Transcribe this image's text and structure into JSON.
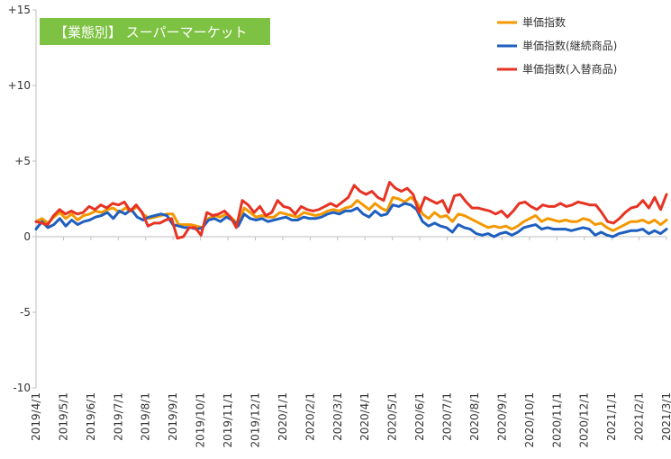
{
  "chart_data": {
    "type": "line",
    "title": "【業態別】 スーパーマーケット",
    "title_bg": "#7DC242",
    "xlabel": "",
    "ylabel": "",
    "ylim": [
      -10,
      15
    ],
    "y_ticks": [
      {
        "value": 15,
        "label": "+15"
      },
      {
        "value": 10,
        "label": "+10"
      },
      {
        "value": 5,
        "label": "+5"
      },
      {
        "value": 0,
        "label": "0"
      },
      {
        "value": -5,
        "label": "-5"
      },
      {
        "value": -10,
        "label": "-10"
      }
    ],
    "x_ticks": [
      "2019/4/1",
      "2019/5/1",
      "2019/6/1",
      "2019/7/1",
      "2019/8/1",
      "2019/9/1",
      "2019/10/1",
      "2019/11/1",
      "2019/12/1",
      "2020/1/1",
      "2020/2/1",
      "2020/3/1",
      "2020/4/1",
      "2020/5/1",
      "2020/6/1",
      "2020/7/1",
      "2020/8/1",
      "2020/9/1",
      "2020/10/1",
      "2020/11/1",
      "2020/12/1",
      "2021/1/1",
      "2021/2/1",
      "2021/3/1"
    ],
    "grid": "horizontal-at-zero-only",
    "legend_position": "top-right",
    "series": [
      {
        "name": "単価指数",
        "color": "#F39800",
        "values": [
          1.0,
          1.2,
          0.9,
          1.3,
          1.6,
          1.2,
          1.5,
          1.1,
          1.4,
          1.5,
          1.7,
          1.6,
          1.8,
          1.9,
          1.6,
          1.9,
          1.7,
          2.0,
          1.5,
          1.2,
          1.3,
          1.4,
          1.5,
          1.5,
          0.8,
          0.8,
          0.8,
          0.7,
          0.6,
          1.2,
          1.4,
          1.3,
          1.5,
          1.2,
          0.8,
          1.9,
          1.6,
          1.3,
          1.4,
          1.3,
          1.3,
          1.6,
          1.5,
          1.4,
          1.3,
          1.6,
          1.5,
          1.4,
          1.5,
          1.7,
          1.8,
          1.7,
          1.9,
          2.0,
          2.4,
          2.1,
          1.8,
          2.2,
          1.9,
          1.7,
          2.6,
          2.5,
          2.3,
          2.6,
          2.3,
          1.5,
          1.2,
          1.6,
          1.3,
          1.4,
          1.0,
          1.5,
          1.4,
          1.2,
          1.0,
          0.8,
          0.6,
          0.7,
          0.6,
          0.7,
          0.5,
          0.7,
          1.0,
          1.2,
          1.4,
          1.0,
          1.2,
          1.1,
          1.0,
          1.1,
          1.0,
          1.0,
          1.2,
          1.1,
          0.8,
          0.9,
          0.6,
          0.4,
          0.6,
          0.8,
          1.0,
          1.0,
          1.1,
          0.9,
          1.1,
          0.8,
          1.1
        ]
      },
      {
        "name": "単価指数(継続商品)",
        "color": "#1F5FBF",
        "values": [
          0.5,
          1.0,
          0.6,
          0.8,
          1.2,
          0.7,
          1.1,
          0.8,
          1.0,
          1.1,
          1.3,
          1.4,
          1.6,
          1.2,
          1.7,
          1.5,
          1.8,
          1.3,
          1.1,
          1.3,
          1.4,
          1.5,
          1.4,
          0.8,
          0.7,
          0.6,
          0.6,
          0.5,
          0.6,
          1.1,
          1.2,
          1.0,
          1.3,
          1.1,
          0.7,
          1.5,
          1.2,
          1.1,
          1.2,
          1.0,
          1.1,
          1.2,
          1.3,
          1.1,
          1.1,
          1.3,
          1.2,
          1.2,
          1.3,
          1.5,
          1.6,
          1.5,
          1.7,
          1.7,
          1.9,
          1.5,
          1.3,
          1.7,
          1.4,
          1.5,
          2.1,
          2.0,
          2.2,
          2.1,
          1.8,
          1.0,
          0.7,
          0.9,
          0.7,
          0.6,
          0.3,
          0.8,
          0.6,
          0.5,
          0.2,
          0.1,
          0.2,
          0.0,
          0.2,
          0.3,
          0.1,
          0.3,
          0.6,
          0.7,
          0.8,
          0.5,
          0.6,
          0.5,
          0.5,
          0.5,
          0.4,
          0.5,
          0.6,
          0.5,
          0.1,
          0.3,
          0.1,
          0.0,
          0.2,
          0.3,
          0.4,
          0.4,
          0.5,
          0.2,
          0.4,
          0.2,
          0.5
        ]
      },
      {
        "name": "単価指数(入替商品)",
        "color": "#E63323",
        "values": [
          1.0,
          0.9,
          0.8,
          1.4,
          1.8,
          1.5,
          1.7,
          1.5,
          1.6,
          2.0,
          1.8,
          2.1,
          1.9,
          2.2,
          2.1,
          2.3,
          1.7,
          2.1,
          1.6,
          0.7,
          0.9,
          0.9,
          1.1,
          1.2,
          -0.1,
          0.0,
          0.6,
          0.6,
          0.1,
          1.6,
          1.4,
          1.5,
          1.7,
          1.3,
          0.6,
          2.4,
          2.1,
          1.6,
          2.0,
          1.4,
          1.6,
          2.4,
          2.0,
          1.9,
          1.5,
          2.0,
          1.8,
          1.7,
          1.8,
          2.0,
          2.2,
          2.0,
          2.3,
          2.6,
          3.4,
          3.0,
          2.8,
          3.0,
          2.6,
          2.4,
          3.6,
          3.2,
          3.0,
          3.2,
          2.8,
          1.6,
          2.6,
          2.4,
          2.2,
          2.4,
          1.6,
          2.7,
          2.8,
          2.3,
          1.9,
          1.9,
          1.8,
          1.7,
          1.5,
          1.7,
          1.3,
          1.7,
          2.2,
          2.3,
          2.0,
          1.8,
          2.1,
          2.0,
          2.0,
          2.2,
          2.0,
          2.1,
          2.3,
          2.2,
          2.1,
          2.1,
          1.6,
          1.0,
          0.9,
          1.2,
          1.6,
          1.9,
          2.0,
          2.4,
          1.9,
          2.6,
          1.8,
          2.8
        ]
      }
    ]
  }
}
